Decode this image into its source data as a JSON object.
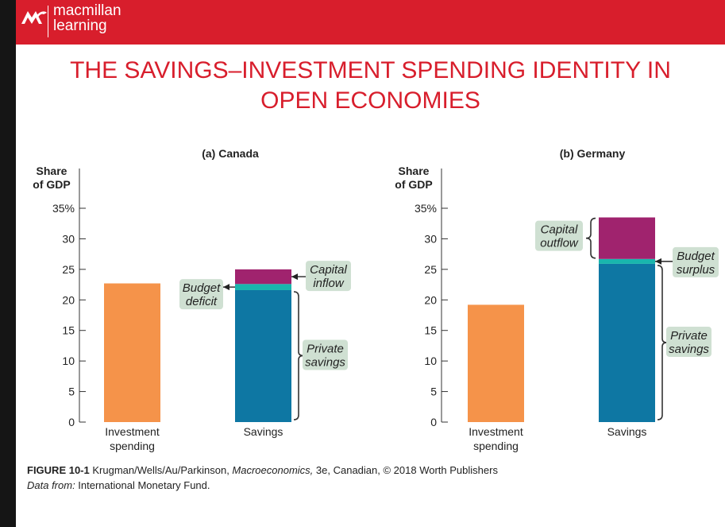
{
  "header": {
    "brand_line1": "macmillan",
    "brand_line2": "learning",
    "logo_icon": "macmillan-logo-icon",
    "background": "#d81e2c"
  },
  "page": {
    "title_line1": "THE SAVINGS–INVESTMENT SPENDING IDENTITY IN",
    "title_line2": "OPEN ECONOMIES"
  },
  "colors": {
    "investment": "#f5934a",
    "private_savings": "#0e77a3",
    "budget": "#19b5ad",
    "capital": "#a0236e",
    "callout_bg": "#cfe0d2"
  },
  "chart_data": [
    {
      "type": "bar",
      "title": "(a) Canada",
      "ylabel": "Share of GDP",
      "ylim": [
        0,
        35
      ],
      "yticks": [
        "0",
        "5",
        "10",
        "15",
        "20",
        "25",
        "30",
        "35%"
      ],
      "categories": [
        "Investment spending",
        "Savings"
      ],
      "category_lines": [
        [
          "Investment",
          "spending"
        ],
        [
          "Savings"
        ]
      ],
      "investment": 22.7,
      "savings_stack": [
        {
          "name": "Private savings",
          "from": 0,
          "to": 21.6
        },
        {
          "name": "Budget deficit",
          "from": 21.6,
          "to": 22.6
        },
        {
          "name": "Capital inflow",
          "from": 22.6,
          "to": 25.0
        }
      ],
      "callouts": {
        "budget": [
          "Budget",
          "deficit"
        ],
        "capital": [
          "Capital",
          "inflow"
        ],
        "private": [
          "Private",
          "savings"
        ]
      }
    },
    {
      "type": "bar",
      "title": "(b) Germany",
      "ylabel": "Share of GDP",
      "ylim": [
        0,
        35
      ],
      "yticks": [
        "0",
        "5",
        "10",
        "15",
        "20",
        "25",
        "30",
        "35%"
      ],
      "categories": [
        "Investment spending",
        "Savings"
      ],
      "category_lines": [
        [
          "Investment",
          "spending"
        ],
        [
          "Savings"
        ]
      ],
      "investment": 19.2,
      "savings_stack": [
        {
          "name": "Private savings",
          "from": 0,
          "to": 25.9
        },
        {
          "name": "Budget surplus",
          "from": 25.9,
          "to": 26.7
        },
        {
          "name": "Capital outflow",
          "from": 26.7,
          "to": 33.5
        }
      ],
      "callouts": {
        "budget": [
          "Budget",
          "surplus"
        ],
        "capital": [
          "Capital",
          "outflow"
        ],
        "private": [
          "Private",
          "savings"
        ]
      }
    }
  ],
  "caption": {
    "figure_label": "FIGURE 10-1",
    "credit_pre": " Krugman/Wells/Au/Parkinson, ",
    "credit_book": "Macroeconomics,",
    "credit_post": " 3e, Canadian, © 2018 Worth Publishers",
    "source_label": "Data from:",
    "source_text": " International Monetary Fund."
  }
}
